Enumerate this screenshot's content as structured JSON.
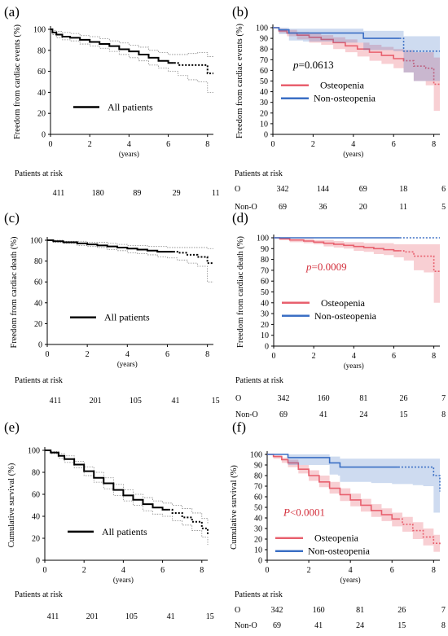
{
  "chart_data": [
    {
      "panel": "(a)",
      "type": "line",
      "ylabel": "Freedom from cardiac events (%)",
      "xlabel": "(years)",
      "xlim": [
        0,
        8.3
      ],
      "ylim": [
        0,
        100
      ],
      "xticks": [
        "0",
        "2",
        "4",
        "6",
        "8"
      ],
      "yticks": [
        "0",
        "20",
        "40",
        "60",
        "80",
        "100"
      ],
      "legend": "All patients",
      "pvalue": "",
      "series": [
        {
          "name": "All patients",
          "color": "#000000",
          "x": [
            0,
            0.1,
            0.3,
            0.6,
            1.0,
            1.5,
            2.0,
            2.5,
            3.0,
            3.5,
            4.0,
            4.5,
            5.0,
            5.5,
            6.0,
            6.5,
            7.0,
            7.5,
            8.0,
            8.3
          ],
          "y": [
            100,
            97,
            95,
            93,
            92,
            90,
            88,
            86,
            84,
            81,
            79,
            76,
            73,
            70,
            68,
            66,
            66,
            66,
            58,
            58
          ],
          "ci_low": [
            100,
            95,
            92,
            90,
            89,
            86,
            84,
            82,
            79,
            76,
            73,
            70,
            66,
            63,
            60,
            56,
            52,
            50,
            40,
            40
          ],
          "ci_high": [
            100,
            99,
            98,
            97,
            96,
            94,
            93,
            91,
            89,
            87,
            85,
            83,
            80,
            78,
            76,
            76,
            77,
            78,
            74,
            74
          ],
          "dotted_from": 6.3
        }
      ],
      "risk": {
        "title": "Patients at risk",
        "rows": [
          {
            "label": "",
            "values": [
              "411",
              "180",
              "89",
              "29",
              "11"
            ]
          }
        ]
      }
    },
    {
      "panel": "(b)",
      "type": "line",
      "ylabel": "Freedom from cardiac events (%)",
      "xlabel": "(years)",
      "xlim": [
        0,
        8.3
      ],
      "ylim": [
        0,
        100
      ],
      "xticks": [
        "0",
        "2",
        "4",
        "6",
        "8"
      ],
      "yticks": [
        "0",
        "10",
        "20",
        "30",
        "40",
        "50",
        "60",
        "70",
        "80",
        "90",
        "100"
      ],
      "legend_items": [
        "Osteopenia",
        "Non-osteopenia"
      ],
      "pvalue": "p=0.0613",
      "series": [
        {
          "name": "Osteopenia",
          "color": "#e8606e",
          "band": "rgba(232,96,110,0.30)",
          "x": [
            0,
            0.3,
            0.7,
            1.2,
            1.8,
            2.4,
            3.0,
            3.6,
            4.2,
            4.8,
            5.4,
            6.0,
            6.5,
            7.0,
            7.6,
            8.0,
            8.3
          ],
          "y": [
            100,
            97,
            95,
            93,
            91,
            89,
            86,
            83,
            80,
            77,
            74,
            71,
            69,
            64,
            62,
            47,
            47
          ],
          "ci_low": [
            100,
            95,
            92,
            89,
            86,
            84,
            80,
            77,
            73,
            69,
            66,
            62,
            58,
            50,
            46,
            22,
            22
          ],
          "ci_high": [
            100,
            99,
            98,
            96,
            95,
            93,
            91,
            89,
            86,
            84,
            82,
            80,
            79,
            77,
            77,
            72,
            72
          ],
          "dotted_from": 6.5
        },
        {
          "name": "Non-osteopenia",
          "color": "#3b6fc4",
          "band": "rgba(59,111,196,0.25)",
          "x": [
            0,
            0.3,
            0.8,
            1.5,
            3.0,
            4.4,
            4.5,
            6.0,
            6.5,
            7.0,
            8.3
          ],
          "y": [
            100,
            98,
            95,
            95,
            95,
            95,
            90,
            90,
            78,
            78,
            78
          ],
          "ci_low": [
            100,
            94,
            88,
            87,
            86,
            86,
            79,
            78,
            58,
            50,
            50
          ],
          "ci_high": [
            100,
            100,
            99,
            99,
            99,
            99,
            97,
            97,
            92,
            92,
            92
          ],
          "dotted_from": 6.3
        }
      ],
      "risk": {
        "title": "Patients at risk",
        "rows": [
          {
            "label": "O",
            "values": [
              "342",
              "144",
              "69",
              "18",
              "6"
            ]
          },
          {
            "label": "Non-O",
            "values": [
              "69",
              "36",
              "20",
              "11",
              "5"
            ]
          }
        ]
      }
    },
    {
      "panel": "(c)",
      "type": "line",
      "ylabel": "Freedom from cardiac death (%)",
      "xlabel": "(years)",
      "xlim": [
        0,
        8.3
      ],
      "ylim": [
        0,
        100
      ],
      "xticks": [
        "0",
        "2",
        "4",
        "6",
        "8"
      ],
      "yticks": [
        "0",
        "20",
        "40",
        "60",
        "80",
        "100"
      ],
      "legend": "All patients",
      "pvalue": "",
      "series": [
        {
          "name": "All patients",
          "color": "#000000",
          "x": [
            0,
            0.3,
            0.8,
            1.5,
            2.0,
            2.5,
            3.0,
            3.5,
            4.0,
            4.5,
            5.0,
            5.5,
            6.0,
            6.5,
            7.0,
            7.5,
            8.0,
            8.3
          ],
          "y": [
            100,
            99,
            98,
            97,
            96,
            95,
            94,
            93,
            92,
            91,
            90,
            89,
            89,
            88,
            86,
            84,
            78,
            78
          ],
          "ci_low": [
            100,
            98,
            97,
            95,
            94,
            93,
            91,
            90,
            88,
            87,
            86,
            84,
            83,
            81,
            78,
            75,
            60,
            60
          ],
          "ci_high": [
            100,
            100,
            99,
            99,
            98,
            98,
            97,
            96,
            95,
            95,
            94,
            94,
            93,
            93,
            93,
            93,
            92,
            92
          ],
          "dotted_from": 6.3
        }
      ],
      "risk": {
        "title": "Patients at risk",
        "rows": [
          {
            "label": "",
            "values": [
              "411",
              "201",
              "105",
              "41",
              "15"
            ]
          }
        ]
      }
    },
    {
      "panel": "(d)",
      "type": "line",
      "ylabel": "Freedom from cardiac death (%)",
      "xlabel": "(years)",
      "xlim": [
        0,
        8.3
      ],
      "ylim": [
        0,
        100
      ],
      "xticks": [
        "0",
        "2",
        "4",
        "6",
        "8"
      ],
      "yticks": [
        "0",
        "10",
        "20",
        "30",
        "40",
        "50",
        "60",
        "70",
        "80",
        "90",
        "100"
      ],
      "legend_items": [
        "Osteopenia",
        "Non-osteopenia"
      ],
      "pvalue": "p=0.0009",
      "series": [
        {
          "name": "Osteopenia",
          "color": "#e8606e",
          "band": "rgba(232,96,110,0.30)",
          "x": [
            0,
            0.3,
            0.8,
            1.5,
            2.0,
            2.5,
            3.0,
            3.5,
            4.0,
            4.5,
            5.0,
            5.5,
            6.0,
            6.5,
            7.0,
            7.5,
            8.0,
            8.3
          ],
          "y": [
            100,
            99,
            98,
            97,
            96,
            95,
            94,
            93,
            92,
            91,
            90,
            89,
            88,
            87,
            83,
            83,
            69,
            69
          ],
          "ci_low": [
            100,
            98,
            96,
            95,
            94,
            92,
            91,
            90,
            88,
            87,
            85,
            84,
            82,
            79,
            70,
            68,
            40,
            40
          ],
          "ci_high": [
            100,
            100,
            99,
            99,
            98,
            98,
            97,
            96,
            96,
            95,
            95,
            95,
            94,
            94,
            94,
            94,
            94,
            94
          ],
          "dotted_from": 6.3
        },
        {
          "name": "Non-osteopenia",
          "color": "#3b6fc4",
          "band": "rgba(59,111,196,0.20)",
          "x": [
            0,
            1.0,
            2.0,
            3.0,
            4.0,
            5.0,
            6.0,
            7.0,
            8.3
          ],
          "y": [
            100,
            100,
            100,
            100,
            100,
            100,
            100,
            100,
            100
          ],
          "ci_low": [
            100,
            100,
            100,
            100,
            100,
            100,
            100,
            100,
            100
          ],
          "ci_high": [
            100,
            100,
            100,
            100,
            100,
            100,
            100,
            100,
            100
          ],
          "dotted_from": 6.3
        }
      ],
      "risk": {
        "title": "Patients at risk",
        "rows": [
          {
            "label": "O",
            "values": [
              "342",
              "160",
              "81",
              "26",
              "7"
            ]
          },
          {
            "label": "Non-O",
            "values": [
              "69",
              "41",
              "24",
              "15",
              "8"
            ]
          }
        ]
      }
    },
    {
      "panel": "(e)",
      "type": "line",
      "ylabel": "Cumulative survival (%)",
      "xlabel": "(years)",
      "xlim": [
        0,
        8.3
      ],
      "ylim": [
        0,
        100
      ],
      "xticks": [
        "0",
        "2",
        "4",
        "6",
        "8"
      ],
      "yticks": [
        "0",
        "20",
        "40",
        "60",
        "80",
        "100"
      ],
      "legend": "All patients",
      "pvalue": "",
      "series": [
        {
          "name": "All patients",
          "color": "#000000",
          "x": [
            0,
            0.3,
            0.7,
            1.0,
            1.5,
            2.0,
            2.5,
            3.0,
            3.5,
            4.0,
            4.5,
            5.0,
            5.5,
            6.0,
            6.5,
            7.0,
            7.5,
            8.0,
            8.3
          ],
          "y": [
            100,
            98,
            95,
            92,
            87,
            81,
            75,
            70,
            64,
            59,
            55,
            51,
            48,
            46,
            43,
            39,
            35,
            29,
            23
          ],
          "ci_low": [
            100,
            97,
            93,
            89,
            84,
            77,
            71,
            65,
            59,
            54,
            50,
            45,
            42,
            40,
            36,
            32,
            27,
            21,
            14
          ],
          "ci_high": [
            100,
            99,
            97,
            95,
            90,
            85,
            80,
            75,
            69,
            64,
            60,
            57,
            54,
            52,
            50,
            47,
            43,
            38,
            33
          ],
          "dotted_from": 6.3
        }
      ],
      "risk": {
        "title": "Patients at risk",
        "rows": [
          {
            "label": "",
            "values": [
              "411",
              "201",
              "105",
              "41",
              "15"
            ]
          }
        ]
      }
    },
    {
      "panel": "(f)",
      "type": "line",
      "ylabel": "Cumulative survival (%)",
      "xlabel": "(years)",
      "xlim": [
        0,
        8.3
      ],
      "ylim": [
        0,
        100
      ],
      "xticks": [
        "0",
        "2",
        "4",
        "6",
        "8"
      ],
      "yticks": [
        "0",
        "10",
        "20",
        "30",
        "40",
        "50",
        "60",
        "70",
        "80",
        "90",
        "100"
      ],
      "legend_items": [
        "Osteopenia",
        "Non-osteopenia"
      ],
      "pvalue": "P<0.0001",
      "series": [
        {
          "name": "Osteopenia",
          "color": "#e8606e",
          "band": "rgba(232,96,110,0.30)",
          "x": [
            0,
            0.3,
            0.7,
            1.0,
            1.5,
            2.0,
            2.5,
            3.0,
            3.5,
            4.0,
            4.5,
            5.0,
            5.5,
            6.0,
            6.5,
            7.0,
            7.5,
            8.0,
            8.3
          ],
          "y": [
            100,
            98,
            95,
            92,
            86,
            80,
            74,
            68,
            62,
            57,
            52,
            47,
            43,
            39,
            34,
            28,
            22,
            16,
            14
          ],
          "ci_low": [
            100,
            96,
            92,
            88,
            82,
            75,
            69,
            63,
            56,
            51,
            46,
            41,
            37,
            32,
            27,
            20,
            14,
            8,
            6
          ],
          "ci_high": [
            100,
            99,
            97,
            95,
            90,
            85,
            80,
            74,
            68,
            63,
            58,
            53,
            49,
            45,
            41,
            36,
            30,
            24,
            22
          ],
          "dotted_from": 6.3
        },
        {
          "name": "Non-osteopenia",
          "color": "#3b6fc4",
          "band": "rgba(59,111,196,0.25)",
          "x": [
            0,
            0.8,
            1.0,
            1.7,
            3.0,
            3.4,
            3.5,
            5.0,
            6.0,
            7.0,
            7.5,
            8.0,
            8.3
          ],
          "y": [
            100,
            100,
            97,
            97,
            92,
            92,
            88,
            88,
            88,
            88,
            88,
            80,
            65
          ],
          "ci_low": [
            100,
            100,
            90,
            90,
            81,
            80,
            74,
            73,
            72,
            71,
            70,
            45,
            30
          ],
          "ci_high": [
            100,
            100,
            100,
            100,
            98,
            98,
            96,
            96,
            96,
            96,
            96,
            96,
            95
          ],
          "dotted_from": 6.3
        }
      ],
      "risk": {
        "title": "Patients at risk",
        "rows": [
          {
            "label": "O",
            "values": [
              "342",
              "160",
              "81",
              "26",
              "7"
            ]
          },
          {
            "label": "Non-O",
            "values": [
              "69",
              "41",
              "24",
              "15",
              "8"
            ]
          }
        ]
      }
    }
  ]
}
